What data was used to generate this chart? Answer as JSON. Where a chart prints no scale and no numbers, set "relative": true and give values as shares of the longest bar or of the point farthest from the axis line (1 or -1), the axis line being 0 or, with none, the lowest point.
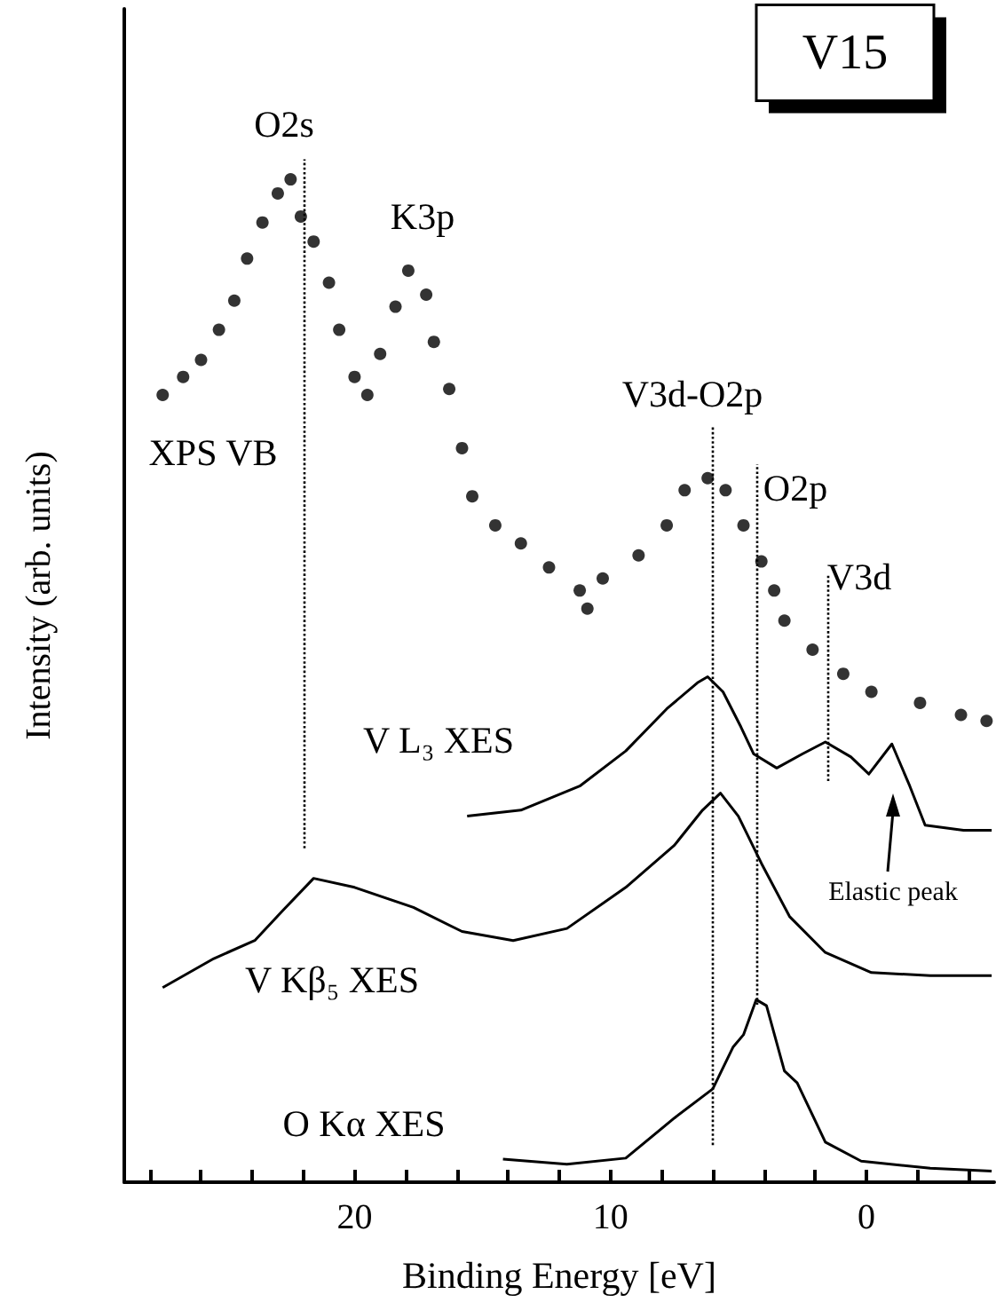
{
  "chart_data": {
    "type": "line",
    "relative": true,
    "xlabel": "Binding Energy [eV]",
    "ylabel": "Intensity (arb. units)",
    "xlim": [
      29,
      -5
    ],
    "xticks": [
      {
        "value": 28,
        "label": null
      },
      {
        "value": 26,
        "label": null
      },
      {
        "value": 24,
        "label": null
      },
      {
        "value": 22,
        "label": null
      },
      20,
      {
        "value": 18,
        "label": null
      },
      {
        "value": 16,
        "label": null
      },
      {
        "value": 14,
        "label": null
      },
      {
        "value": 12,
        "label": null
      },
      10,
      {
        "value": 8,
        "label": null
      },
      {
        "value": 6,
        "label": null
      },
      {
        "value": 4,
        "label": null
      },
      {
        "value": 2,
        "label": null
      },
      0,
      {
        "value": -2,
        "label": null
      },
      {
        "value": -4,
        "label": null
      }
    ],
    "series": [
      {
        "type": "scatter",
        "marker": "circle",
        "color": "#000000",
        "x": [
          27.5,
          26.7,
          26.0,
          25.3,
          24.7,
          24.2,
          23.6,
          23.0,
          22.5,
          22.1,
          21.6,
          21.0,
          20.6,
          20.0,
          19.5,
          19.0,
          18.4,
          17.9,
          17.2,
          16.9,
          16.3,
          15.8,
          15.4,
          14.5,
          13.5,
          12.4,
          11.2,
          10.9,
          10.3,
          8.9,
          7.8,
          7.1,
          6.2,
          5.5,
          4.8,
          4.1,
          3.6,
          3.2,
          2.1,
          0.9,
          -0.2,
          -2.1,
          -3.7,
          -4.7
        ],
        "values": [
          0.785,
          0.803,
          0.82,
          0.85,
          0.879,
          0.921,
          0.957,
          0.986,
          1.0,
          0.963,
          0.938,
          0.897,
          0.85,
          0.803,
          0.785,
          0.826,
          0.873,
          0.909,
          0.885,
          0.838,
          0.791,
          0.732,
          0.684,
          0.655,
          0.637,
          0.613,
          0.59,
          0.572,
          0.602,
          0.625,
          0.655,
          0.69,
          0.702,
          0.69,
          0.655,
          0.619,
          0.59,
          0.56,
          0.531,
          0.507,
          0.489,
          0.478,
          0.466,
          0.46
        ]
      },
      {
        "type": "line",
        "marker": "none",
        "color": "#000000",
        "x": [
          15.6,
          13.5,
          11.2,
          9.4,
          7.8,
          6.6,
          6.2,
          5.6,
          4.9,
          4.4,
          3.5,
          2.5,
          1.6,
          0.6,
          -0.1,
          -1.0,
          -1.7,
          -2.3,
          -3.8,
          -4.9
        ],
        "values": [
          0.365,
          0.371,
          0.395,
          0.43,
          0.472,
          0.498,
          0.504,
          0.489,
          0.454,
          0.427,
          0.413,
          0.427,
          0.439,
          0.424,
          0.407,
          0.437,
          0.395,
          0.356,
          0.351,
          0.351
        ]
      },
      {
        "type": "line",
        "marker": "none",
        "color": "#000000",
        "x": [
          27.5,
          25.5,
          23.9,
          22.8,
          21.6,
          20.0,
          17.7,
          15.8,
          13.8,
          11.7,
          9.4,
          7.5,
          6.4,
          5.7,
          5.0,
          4.1,
          3.0,
          1.6,
          -0.2,
          -2.5,
          -4.9
        ],
        "values": [
          0.194,
          0.223,
          0.241,
          0.271,
          0.303,
          0.294,
          0.274,
          0.25,
          0.241,
          0.253,
          0.294,
          0.336,
          0.371,
          0.388,
          0.365,
          0.318,
          0.265,
          0.229,
          0.209,
          0.206,
          0.206
        ]
      },
      {
        "type": "line",
        "marker": "none",
        "color": "#000000",
        "x": [
          14.2,
          11.7,
          9.4,
          7.5,
          6.0,
          5.2,
          4.8,
          4.3,
          3.9,
          3.2,
          2.7,
          1.6,
          0.2,
          -2.5,
          -4.9
        ],
        "values": [
          0.023,
          0.018,
          0.024,
          0.064,
          0.093,
          0.135,
          0.147,
          0.182,
          0.176,
          0.111,
          0.099,
          0.04,
          0.021,
          0.014,
          0.011
        ]
      }
    ],
    "ref_lines": [
      {
        "axis": "x",
        "value": 22.0,
        "color": "#000000",
        "line_style": "dotted"
      },
      {
        "axis": "x",
        "value": 6.0,
        "color": "#000000",
        "line_style": "dotted"
      },
      {
        "axis": "x",
        "value": 4.3,
        "color": "#000000",
        "line_style": "dotted"
      },
      {
        "axis": "x",
        "value": 1.5,
        "color": "#000000",
        "line_style": "dotted"
      }
    ],
    "annotations": [
      "V15",
      "O2s",
      "K3p",
      "XPS VB",
      "V3d-O2p",
      "O2p",
      "V3d",
      "V L₃ XES",
      "V Kβ₅ XES",
      "O Kα XES",
      "Elastic peak"
    ]
  }
}
